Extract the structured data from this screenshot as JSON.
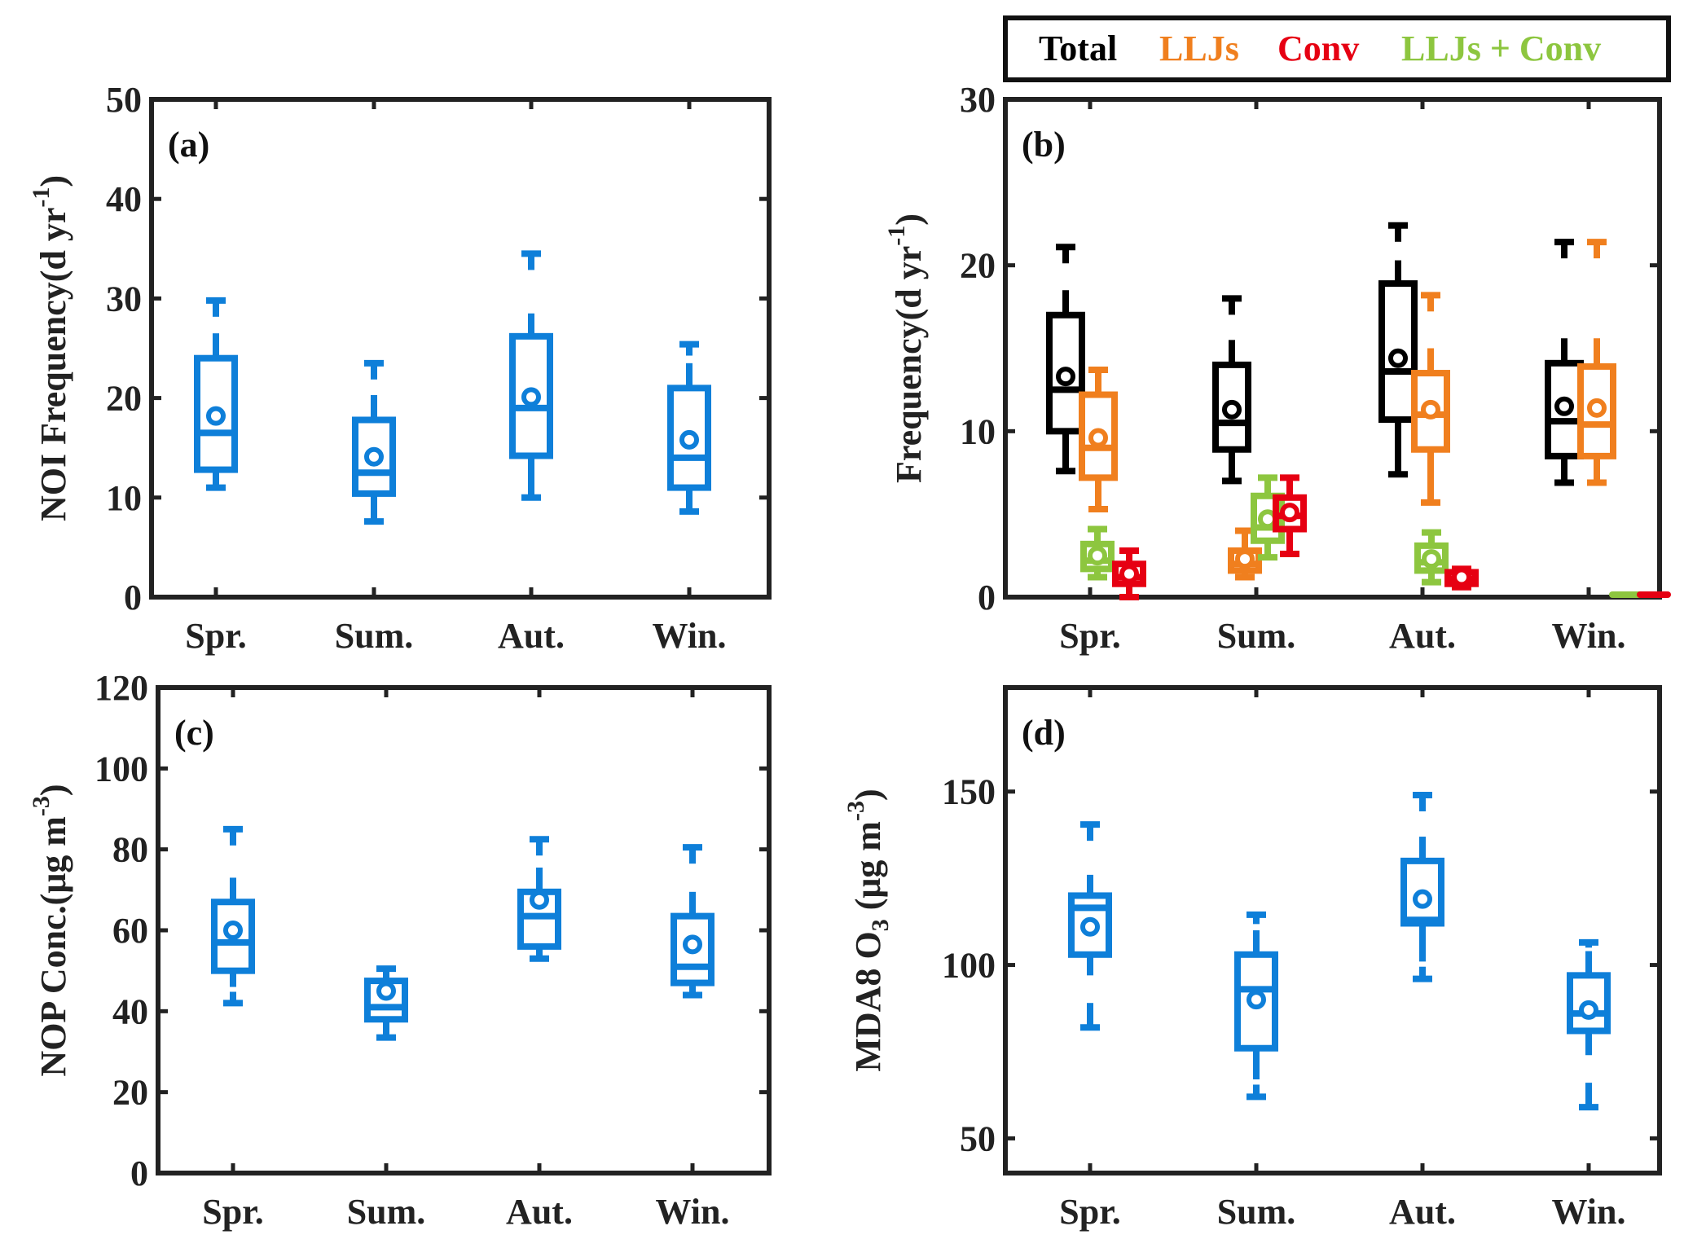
{
  "legend": {
    "items": [
      {
        "label": "Total",
        "color": "#000000"
      },
      {
        "label": "LLJs",
        "color": "#f07f1e"
      },
      {
        "label": "Conv",
        "color": "#e60012"
      },
      {
        "label": "LLJs + Conv",
        "color": "#8dc63f"
      }
    ]
  },
  "chart_data": [
    {
      "id": "a",
      "type": "box",
      "title": "",
      "panel_label": "(a)",
      "xlabel": "",
      "ylabel": "NOI Frequency(d yr",
      "ylabel_sup": "-1",
      "ylabel_tail": ")",
      "categories": [
        "Spr.",
        "Sum.",
        "Aut.",
        "Win."
      ],
      "ylim": [
        0,
        50
      ],
      "yticks": [
        0,
        10,
        20,
        30,
        40,
        50
      ],
      "series": [
        {
          "name": "NOI",
          "color": "#0e7fd9",
          "boxes": [
            {
              "max": 29.8,
              "upper_whisker": 26.5,
              "q3": 24.0,
              "mean": 18.2,
              "median": 16.5,
              "q1": 12.8,
              "lower_whisker": 11.0,
              "min": 11.0
            },
            {
              "max": 23.5,
              "upper_whisker": 20.3,
              "q3": 17.8,
              "mean": 14.1,
              "median": 12.5,
              "q1": 10.4,
              "lower_whisker": 7.6,
              "min": 7.6
            },
            {
              "max": 34.5,
              "upper_whisker": 28.5,
              "q3": 26.2,
              "mean": 20.1,
              "median": 19.0,
              "q1": 14.2,
              "lower_whisker": 10.0,
              "min": 10.0
            },
            {
              "max": 25.4,
              "upper_whisker": 23.5,
              "q3": 21.0,
              "mean": 15.8,
              "median": 14.0,
              "q1": 11.0,
              "lower_whisker": 8.6,
              "min": 8.6
            }
          ]
        }
      ]
    },
    {
      "id": "b",
      "type": "box",
      "title": "",
      "panel_label": "(b)",
      "xlabel": "",
      "ylabel": "Frequency(d yr",
      "ylabel_sup": "-1",
      "ylabel_tail": ")",
      "categories": [
        "Spr.",
        "Sum.",
        "Aut.",
        "Win."
      ],
      "ylim": [
        0,
        30
      ],
      "yticks": [
        0,
        10,
        20,
        30
      ],
      "legend_position": "top-right, outside",
      "series": [
        {
          "name": "Total",
          "color": "#000000",
          "boxes": [
            {
              "max": 21.1,
              "upper_whisker": 18.5,
              "q3": 17.0,
              "mean": 13.3,
              "median": 12.5,
              "q1": 10.0,
              "lower_whisker": 7.6,
              "min": 7.6
            },
            {
              "max": 18.0,
              "upper_whisker": 15.5,
              "q3": 14.0,
              "mean": 11.3,
              "median": 10.5,
              "q1": 8.9,
              "lower_whisker": 7.0,
              "min": 7.0
            },
            {
              "max": 22.4,
              "upper_whisker": 20.3,
              "q3": 18.9,
              "mean": 14.4,
              "median": 13.6,
              "q1": 10.7,
              "lower_whisker": 7.4,
              "min": 7.4
            },
            {
              "max": 21.4,
              "upper_whisker": 15.6,
              "q3": 14.1,
              "mean": 11.5,
              "median": 10.6,
              "q1": 8.5,
              "lower_whisker": 6.9,
              "min": 6.9
            }
          ]
        },
        {
          "name": "LLJs",
          "color": "#f07f1e",
          "boxes": [
            {
              "max": 13.7,
              "upper_whisker": 13.7,
              "q3": 12.2,
              "mean": 9.6,
              "median": 9.0,
              "q1": 7.2,
              "lower_whisker": 5.3,
              "min": 5.3
            },
            {
              "max": 4.0,
              "upper_whisker": 4.0,
              "q3": 2.8,
              "mean": 2.3,
              "median": 2.0,
              "q1": 1.6,
              "lower_whisker": 1.2,
              "min": 1.2
            },
            {
              "max": 18.2,
              "upper_whisker": 15.0,
              "q3": 13.5,
              "mean": 11.3,
              "median": 11.0,
              "q1": 8.9,
              "lower_whisker": 5.7,
              "min": 5.7
            },
            {
              "max": 21.4,
              "upper_whisker": 15.6,
              "q3": 13.9,
              "mean": 11.4,
              "median": 10.4,
              "q1": 8.5,
              "lower_whisker": 6.9,
              "min": 6.9
            }
          ]
        },
        {
          "name": "LLJs + Conv",
          "color": "#8dc63f",
          "boxes": [
            {
              "max": 4.1,
              "upper_whisker": 4.1,
              "q3": 3.2,
              "mean": 2.5,
              "median": 2.2,
              "q1": 1.7,
              "lower_whisker": 1.2,
              "min": 1.2
            },
            {
              "max": 7.2,
              "upper_whisker": 7.2,
              "q3": 6.1,
              "mean": 4.7,
              "median": 4.2,
              "q1": 3.4,
              "lower_whisker": 2.4,
              "min": 2.4
            },
            {
              "max": 3.9,
              "upper_whisker": 3.9,
              "q3": 3.1,
              "mean": 2.3,
              "median": 2.1,
              "q1": 1.6,
              "lower_whisker": 0.9,
              "min": 0.9
            },
            {
              "max": 0,
              "upper_whisker": 0,
              "q3": 0,
              "mean": 0,
              "median": 0,
              "q1": 0,
              "lower_whisker": 0,
              "min": 0
            }
          ]
        },
        {
          "name": "Conv",
          "color": "#e60012",
          "boxes": [
            {
              "max": 2.8,
              "upper_whisker": 2.8,
              "q3": 2.0,
              "mean": 1.4,
              "median": 1.2,
              "q1": 0.8,
              "lower_whisker": 0.0,
              "min": 0.0
            },
            {
              "max": 7.2,
              "upper_whisker": 7.2,
              "q3": 6.0,
              "mean": 5.1,
              "median": 4.9,
              "q1": 4.1,
              "lower_whisker": 2.6,
              "min": 2.6
            },
            {
              "max": 1.7,
              "upper_whisker": 1.7,
              "q3": 1.5,
              "mean": 1.2,
              "median": 1.1,
              "q1": 0.8,
              "lower_whisker": 0.6,
              "min": 0.6
            },
            {
              "max": 0,
              "upper_whisker": 0,
              "q3": 0,
              "mean": 0,
              "median": 0,
              "q1": 0,
              "lower_whisker": 0,
              "min": 0
            }
          ]
        }
      ]
    },
    {
      "id": "c",
      "type": "box",
      "title": "",
      "panel_label": "(c)",
      "xlabel": "",
      "ylabel": "NOP Conc.(μg m",
      "ylabel_sup": "-3",
      "ylabel_tail": ")",
      "categories": [
        "Spr.",
        "Sum.",
        "Aut.",
        "Win."
      ],
      "ylim": [
        0,
        120
      ],
      "yticks": [
        0,
        20,
        40,
        60,
        80,
        100,
        120
      ],
      "series": [
        {
          "name": "NOP",
          "color": "#0e7fd9",
          "boxes": [
            {
              "max": 85.0,
              "upper_whisker": 73.0,
              "q3": 67.0,
              "mean": 60.0,
              "median": 57.0,
              "q1": 50.0,
              "lower_whisker": 46.0,
              "min": 42.0
            },
            {
              "max": 50.5,
              "upper_whisker": 50.5,
              "q3": 47.5,
              "mean": 45.0,
              "median": 41.0,
              "q1": 38.0,
              "lower_whisker": 33.5,
              "min": 33.5
            },
            {
              "max": 82.5,
              "upper_whisker": 75.5,
              "q3": 69.5,
              "mean": 67.5,
              "median": 63.5,
              "q1": 56.0,
              "lower_whisker": 53.0,
              "min": 53.0
            },
            {
              "max": 80.5,
              "upper_whisker": 69.5,
              "q3": 63.5,
              "mean": 56.5,
              "median": 51.0,
              "q1": 47.0,
              "lower_whisker": 44.0,
              "min": 44.0
            }
          ]
        }
      ]
    },
    {
      "id": "d",
      "type": "box",
      "title": "",
      "panel_label": "(d)",
      "xlabel": "",
      "ylabel": "MDA8 O",
      "ylabel_sub": "3",
      "ylabel_tail": " (μg m",
      "ylabel_sup": "-3",
      "ylabel_end": ")",
      "categories": [
        "Spr.",
        "Sum.",
        "Aut.",
        "Win."
      ],
      "ylim": [
        40,
        180
      ],
      "yticks": [
        50,
        100,
        150
      ],
      "series": [
        {
          "name": "MDA8 O3",
          "color": "#0e7fd9",
          "boxes": [
            {
              "max": 140.5,
              "upper_whisker": 126.0,
              "q3": 120.0,
              "mean": 111.0,
              "median": 116.5,
              "q1": 103.0,
              "lower_whisker": 97.0,
              "min": 82.0
            },
            {
              "max": 114.5,
              "upper_whisker": 110.0,
              "q3": 103.0,
              "mean": 90.0,
              "median": 93.0,
              "q1": 76.0,
              "lower_whisker": 67.0,
              "min": 62.0
            },
            {
              "max": 149.0,
              "upper_whisker": 137.0,
              "q3": 130.0,
              "mean": 119.0,
              "median": 113.0,
              "q1": 112.0,
              "lower_whisker": 101.0,
              "min": 96.0
            },
            {
              "max": 106.5,
              "upper_whisker": 104.0,
              "q3": 97.0,
              "mean": 87.0,
              "median": 86.0,
              "q1": 81.0,
              "lower_whisker": 74.0,
              "min": 59.0
            }
          ]
        }
      ]
    }
  ]
}
